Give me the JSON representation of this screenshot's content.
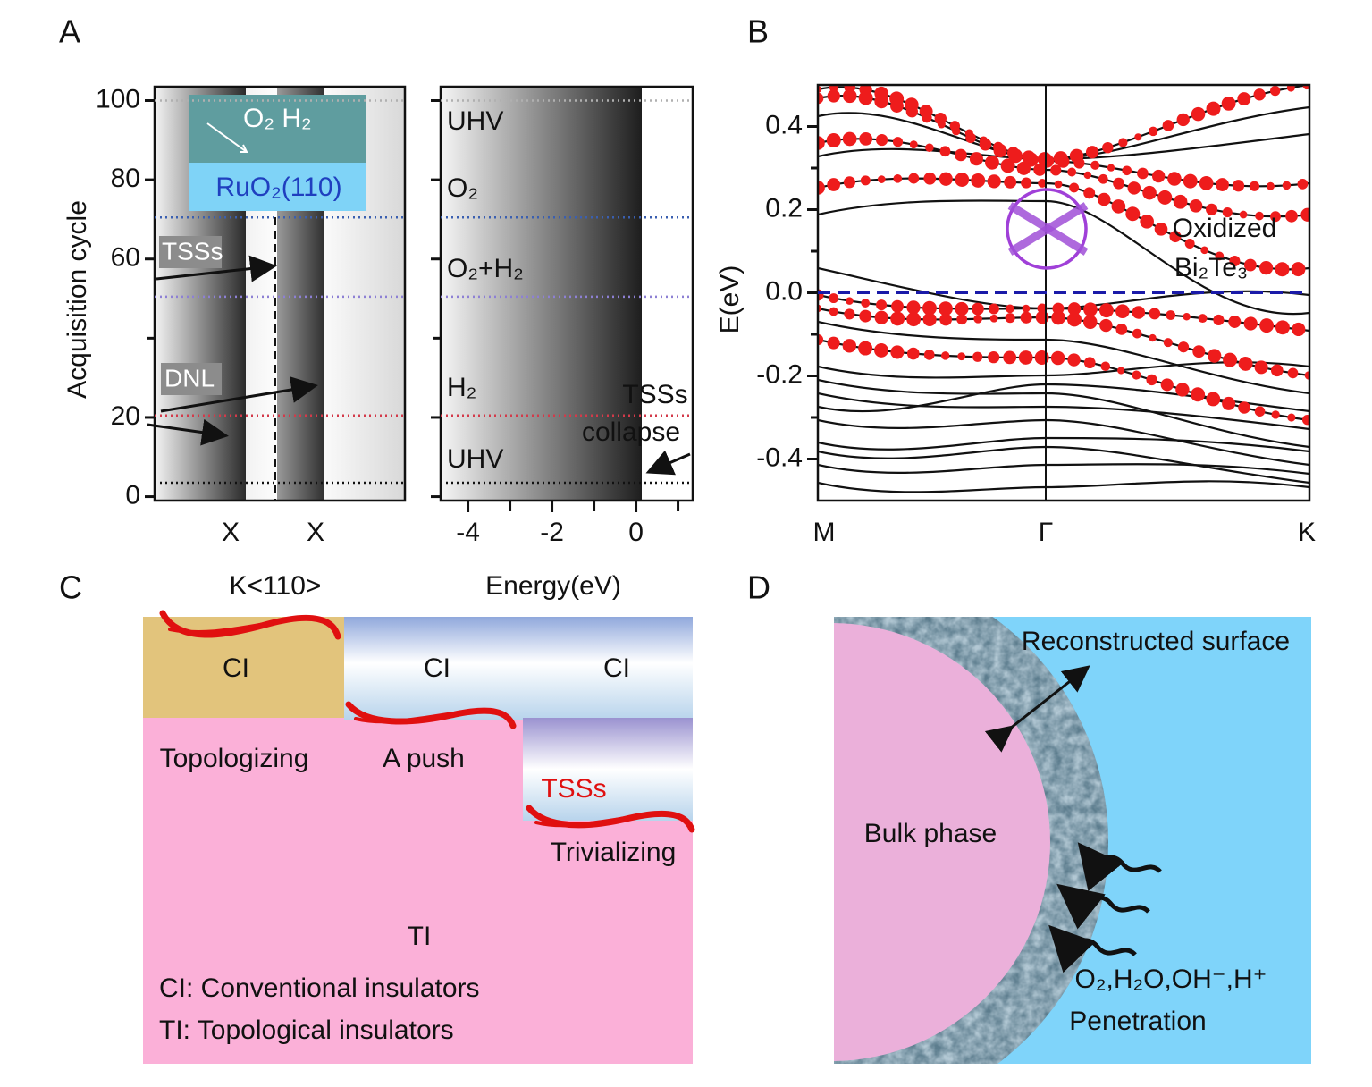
{
  "panel_labels": [
    "A",
    "B",
    "C",
    "D"
  ],
  "panel_a": {
    "ylabel": "Acquisition cycle",
    "ylim": [
      -1,
      103.5
    ],
    "yticks": [
      0,
      20,
      60,
      80,
      100
    ],
    "yminorticks": [
      40
    ],
    "stage_lines": [
      {
        "value": 100,
        "color": "#b0b0b0"
      },
      {
        "value": 70.5,
        "color": "#3a5fb0"
      },
      {
        "value": 50.5,
        "color": "#8d80d4"
      },
      {
        "value": 20.5,
        "color": "#d33a4a"
      },
      {
        "value": 3.5,
        "color": "#111111"
      }
    ],
    "left": {
      "categories": [
        "X",
        "X"
      ],
      "xlabel": "K<110>",
      "inset": {
        "gas": "O₂   H₂",
        "substrate": "RuO₂(110)"
      },
      "annotations": [
        "TSSs",
        "DNL"
      ]
    },
    "right": {
      "xlabel": "Energy(eV)",
      "xlim": [
        -4.65,
        1.35
      ],
      "xticks": [
        -4,
        -2,
        0
      ],
      "xminorticks": [
        -3,
        -1,
        1
      ],
      "stages": [
        "UHV",
        "O₂",
        "O₂+H₂",
        "H₂",
        "UHV"
      ],
      "annotation": [
        "TSSs",
        "collapse"
      ]
    }
  },
  "panel_b": {
    "ylabel": "E(eV)",
    "ylim": [
      -0.5,
      0.5
    ],
    "yticks": [
      -0.4,
      -0.2,
      {
        "value": 0,
        "label": "0.0"
      },
      0.2,
      0.4
    ],
    "yminorticks": [
      -0.3,
      -0.1,
      0.1,
      0.3
    ],
    "categories": [
      "M",
      "Γ",
      "K"
    ],
    "fermi_level": 0,
    "annotation": [
      "Oxidized",
      "Bi₂Te₃"
    ]
  },
  "panel_c": {
    "labels": [
      "CI",
      "CI",
      "CI",
      "Topologizing",
      "A push",
      "TSSs",
      "Trivializing",
      "TI"
    ],
    "legend": [
      "CI: Conventional insulators",
      "TI: Topological insulators"
    ]
  },
  "panel_d": {
    "surface": "Reconstructed surface",
    "bulk": "Bulk phase",
    "species": "O₂,H₂O,OH⁻,H⁺",
    "process": "Penetration"
  }
}
